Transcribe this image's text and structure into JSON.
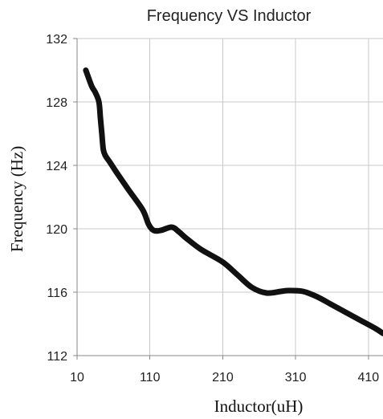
{
  "chart_data": {
    "type": "line",
    "title": "Frequency VS Inductor",
    "xlabel": "Inductor(uH)",
    "ylabel": "Frequency (Hz)",
    "xlim": [
      10,
      430
    ],
    "ylim": [
      112,
      132
    ],
    "x_ticks": [
      "10",
      "110",
      "210",
      "310",
      "410"
    ],
    "y_ticks": [
      "112",
      "116",
      "120",
      "124",
      "128",
      "132"
    ],
    "grid": true,
    "series": [
      {
        "color": "#111111",
        "x": [
          22,
          30,
          35,
          40,
          42,
          44,
          46,
          49,
          55,
          65,
          80,
          100,
          108,
          115,
          125,
          140,
          150,
          160,
          180,
          210,
          230,
          250,
          270,
          290,
          300,
          320,
          340,
          360,
          380,
          400,
          420,
          430
        ],
        "y": [
          130,
          129,
          128.6,
          128,
          127,
          126,
          125,
          124.6,
          124.2,
          123.5,
          122.5,
          121.2,
          120.3,
          119.9,
          119.9,
          120.1,
          119.8,
          119.4,
          118.7,
          117.9,
          117.1,
          116.3,
          115.95,
          116.05,
          116.1,
          116.05,
          115.7,
          115.2,
          114.7,
          114.2,
          113.7,
          113.4
        ]
      }
    ]
  }
}
